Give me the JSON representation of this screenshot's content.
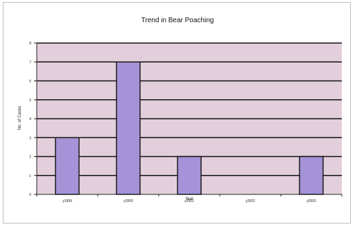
{
  "chart_data": {
    "type": "bar",
    "title": "Trend in Bear Poaching",
    "xlabel": "Year",
    "ylabel": "No. of Cases",
    "categories": [
      "y1999",
      "y2000",
      "y2001",
      "y2002",
      "y2003"
    ],
    "values": [
      3,
      7,
      2,
      0,
      2
    ],
    "ylim": [
      0,
      8
    ],
    "yticks": [
      "0",
      "1",
      "2",
      "3",
      "4",
      "5",
      "6",
      "7",
      "8"
    ],
    "grid": true,
    "legend": "none",
    "colors": {
      "plot_background": "#e3cedb",
      "bar_fill": "#a493d6",
      "bar_stroke": "#111111",
      "gridline": "#111111"
    }
  }
}
